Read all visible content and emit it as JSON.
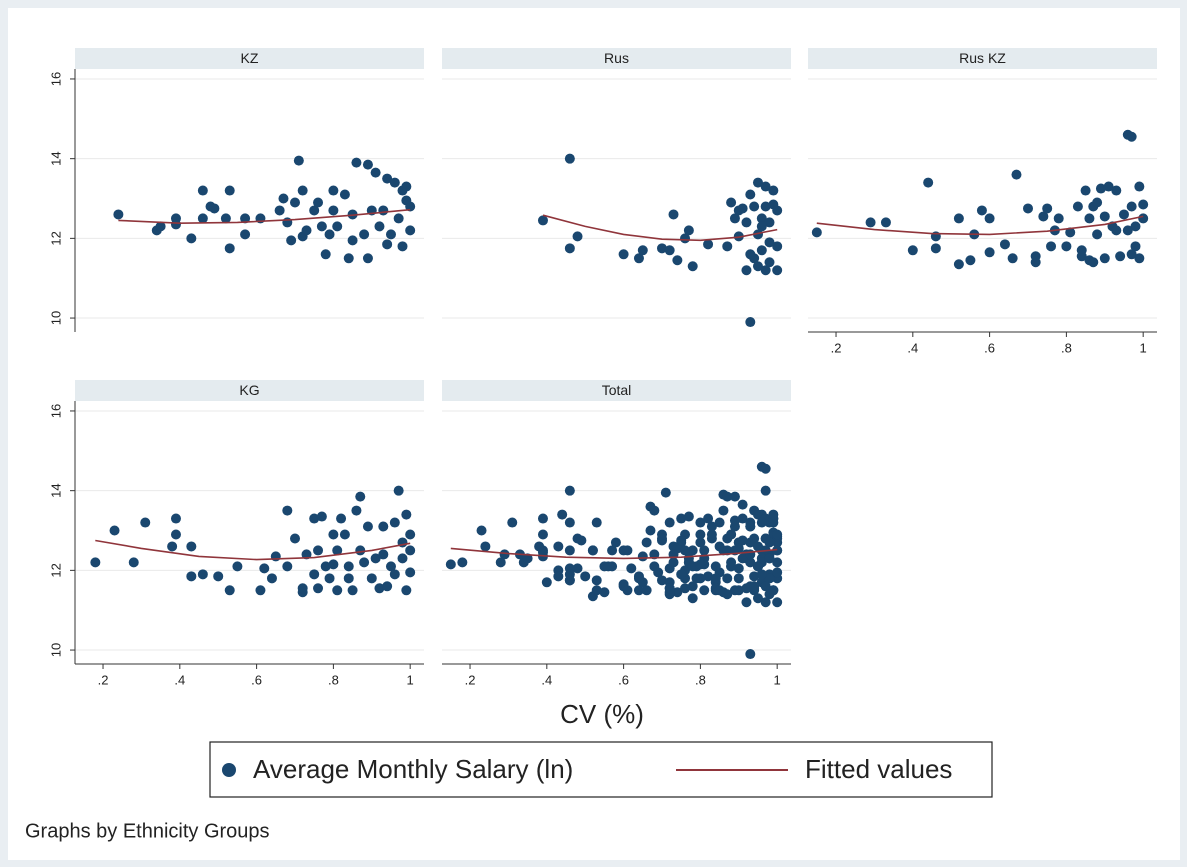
{
  "chart_data": [
    {
      "type": "scatter",
      "title": "KZ",
      "color": "#1a476f",
      "x": [
        0.24,
        0.34,
        0.35,
        0.39,
        0.39,
        0.43,
        0.46,
        0.46,
        0.48,
        0.49,
        0.52,
        0.53,
        0.53,
        0.57,
        0.57,
        0.61,
        0.66,
        0.67,
        0.68,
        0.69,
        0.7,
        0.71,
        0.72,
        0.72,
        0.73,
        0.75,
        0.76,
        0.77,
        0.78,
        0.79,
        0.8,
        0.8,
        0.81,
        0.83,
        0.84,
        0.85,
        0.85,
        0.86,
        0.88,
        0.89,
        0.89,
        0.9,
        0.91,
        0.92,
        0.93,
        0.94,
        0.94,
        0.95,
        0.96,
        0.97,
        0.98,
        0.98,
        0.99,
        1.0,
        1.0,
        0.99
      ],
      "values": [
        12.6,
        12.2,
        12.3,
        12.5,
        12.35,
        12.0,
        12.5,
        13.2,
        12.8,
        12.75,
        12.5,
        11.75,
        13.2,
        12.1,
        12.5,
        12.5,
        12.7,
        13.0,
        12.4,
        11.95,
        12.9,
        13.95,
        12.05,
        13.2,
        12.2,
        12.7,
        12.9,
        12.3,
        11.6,
        12.1,
        12.7,
        13.2,
        12.3,
        13.1,
        11.5,
        12.6,
        11.95,
        13.9,
        12.1,
        13.85,
        11.5,
        12.7,
        13.65,
        12.3,
        12.7,
        11.85,
        13.5,
        12.1,
        13.4,
        12.5,
        13.2,
        11.8,
        12.95,
        12.2,
        12.8,
        13.3
      ],
      "fit": {
        "color": "#90353b",
        "x": [
          0.24,
          0.4,
          0.55,
          0.7,
          0.85,
          1.0
        ],
        "values": [
          12.45,
          12.38,
          12.4,
          12.47,
          12.58,
          12.72
        ]
      },
      "xlim": [
        0.127,
        1.036
      ],
      "ylim": [
        9.65,
        16.25
      ],
      "yticks": [
        10,
        12,
        14,
        16
      ],
      "ytick_labels": true,
      "grid": true
    },
    {
      "type": "scatter",
      "title": "Rus",
      "color": "#1a476f",
      "x": [
        0.39,
        0.46,
        0.46,
        0.48,
        0.6,
        0.64,
        0.65,
        0.7,
        0.72,
        0.73,
        0.74,
        0.76,
        0.77,
        0.78,
        0.82,
        0.87,
        0.88,
        0.89,
        0.9,
        0.9,
        0.91,
        0.92,
        0.92,
        0.93,
        0.93,
        0.94,
        0.94,
        0.95,
        0.95,
        0.95,
        0.96,
        0.96,
        0.97,
        0.97,
        0.97,
        0.98,
        0.98,
        0.99,
        0.99,
        1.0,
        1.0,
        1.0,
        0.98,
        0.96,
        0.93
      ],
      "values": [
        12.45,
        14.0,
        11.75,
        12.05,
        11.6,
        11.5,
        11.7,
        11.75,
        11.7,
        12.6,
        11.45,
        12.0,
        12.2,
        11.3,
        11.85,
        11.8,
        12.9,
        12.5,
        12.7,
        12.05,
        12.75,
        11.2,
        12.4,
        13.1,
        9.9,
        11.5,
        12.8,
        12.1,
        11.3,
        13.4,
        11.7,
        12.5,
        11.2,
        12.8,
        13.3,
        11.4,
        12.4,
        12.85,
        13.2,
        11.2,
        11.8,
        12.7,
        11.9,
        12.3,
        11.6
      ],
      "fit": {
        "color": "#90353b",
        "x": [
          0.39,
          0.5,
          0.6,
          0.7,
          0.8,
          0.9,
          1.0
        ],
        "values": [
          12.58,
          12.3,
          12.1,
          11.98,
          11.95,
          12.03,
          12.22
        ]
      },
      "xlim": [
        0.127,
        1.036
      ],
      "ylim": [
        9.65,
        16.25
      ],
      "yticks": [
        10,
        12,
        14,
        16
      ],
      "ytick_labels": false,
      "grid": true
    },
    {
      "type": "scatter",
      "title": "Rus KZ",
      "color": "#1a476f",
      "x": [
        0.15,
        0.29,
        0.33,
        0.4,
        0.44,
        0.46,
        0.46,
        0.52,
        0.52,
        0.55,
        0.56,
        0.58,
        0.6,
        0.6,
        0.64,
        0.66,
        0.67,
        0.7,
        0.72,
        0.72,
        0.74,
        0.75,
        0.76,
        0.77,
        0.78,
        0.8,
        0.81,
        0.83,
        0.84,
        0.84,
        0.85,
        0.86,
        0.86,
        0.87,
        0.87,
        0.88,
        0.88,
        0.89,
        0.9,
        0.9,
        0.91,
        0.92,
        0.93,
        0.93,
        0.94,
        0.95,
        0.96,
        0.97,
        0.97,
        0.98,
        0.98,
        0.99,
        0.99,
        1.0,
        1.0,
        0.96,
        0.97
      ],
      "values": [
        12.15,
        12.4,
        12.4,
        11.7,
        13.4,
        12.05,
        11.75,
        12.5,
        11.35,
        11.45,
        12.1,
        12.7,
        12.5,
        11.65,
        11.85,
        11.5,
        13.6,
        12.75,
        11.4,
        11.55,
        12.55,
        12.75,
        11.8,
        12.2,
        12.5,
        11.8,
        12.15,
        12.8,
        11.7,
        11.55,
        13.2,
        12.5,
        11.45,
        12.8,
        11.4,
        12.9,
        12.1,
        13.25,
        11.5,
        12.55,
        13.3,
        12.3,
        13.2,
        12.2,
        11.55,
        12.6,
        14.6,
        14.55,
        12.8,
        11.8,
        12.3,
        13.3,
        11.5,
        12.5,
        12.85,
        12.2,
        11.6
      ],
      "fit": {
        "color": "#90353b",
        "x": [
          0.15,
          0.3,
          0.45,
          0.6,
          0.75,
          0.9,
          1.0
        ],
        "values": [
          12.38,
          12.22,
          12.12,
          12.1,
          12.18,
          12.35,
          12.55
        ]
      },
      "xlim": [
        0.127,
        1.036
      ],
      "ylim": [
        9.65,
        16.25
      ],
      "yticks": [
        10,
        12,
        14,
        16
      ],
      "ytick_labels": false,
      "grid": true,
      "xticks": [
        {
          "value": 0.2,
          "label": ".2"
        },
        {
          "value": 0.4,
          "label": ".4"
        },
        {
          "value": 0.6,
          "label": ".6"
        },
        {
          "value": 0.8,
          "label": ".8"
        },
        1
      ]
    },
    {
      "type": "scatter",
      "title": "KG",
      "color": "#1a476f",
      "x": [
        0.18,
        0.23,
        0.28,
        0.31,
        0.38,
        0.39,
        0.39,
        0.43,
        0.43,
        0.46,
        0.5,
        0.53,
        0.55,
        0.61,
        0.62,
        0.64,
        0.65,
        0.68,
        0.68,
        0.7,
        0.72,
        0.72,
        0.73,
        0.75,
        0.75,
        0.76,
        0.76,
        0.77,
        0.78,
        0.79,
        0.8,
        0.8,
        0.81,
        0.81,
        0.82,
        0.83,
        0.84,
        0.84,
        0.85,
        0.86,
        0.87,
        0.87,
        0.88,
        0.89,
        0.9,
        0.91,
        0.92,
        0.93,
        0.93,
        0.94,
        0.95,
        0.96,
        0.96,
        0.97,
        0.98,
        0.98,
        0.99,
        0.99,
        1.0,
        1.0,
        1.0
      ],
      "values": [
        12.2,
        13.0,
        12.2,
        13.2,
        12.6,
        13.3,
        12.9,
        12.6,
        11.85,
        11.9,
        11.85,
        11.5,
        12.1,
        11.5,
        12.05,
        11.8,
        12.35,
        13.5,
        12.1,
        12.8,
        11.45,
        11.55,
        12.4,
        13.3,
        11.9,
        11.55,
        12.5,
        13.35,
        12.1,
        11.8,
        12.9,
        12.15,
        12.5,
        11.5,
        13.3,
        12.9,
        11.8,
        12.1,
        11.5,
        13.5,
        13.85,
        12.5,
        12.2,
        13.1,
        11.8,
        12.3,
        11.55,
        12.4,
        13.1,
        11.6,
        12.1,
        11.9,
        13.2,
        14.0,
        12.3,
        12.7,
        11.5,
        13.4,
        12.9,
        12.5,
        11.95
      ],
      "fit": {
        "color": "#90353b",
        "x": [
          0.18,
          0.3,
          0.45,
          0.6,
          0.75,
          0.9,
          1.0
        ],
        "values": [
          12.75,
          12.55,
          12.35,
          12.27,
          12.32,
          12.5,
          12.68
        ]
      },
      "xlim": [
        0.127,
        1.036
      ],
      "ylim": [
        9.65,
        16.25
      ],
      "yticks": [
        10,
        12,
        14,
        16
      ],
      "ytick_labels": true,
      "grid": true,
      "xticks": [
        {
          "value": 0.2,
          "label": ".2"
        },
        {
          "value": 0.4,
          "label": ".4"
        },
        {
          "value": 0.6,
          "label": ".6"
        },
        {
          "value": 0.8,
          "label": ".8"
        },
        1
      ]
    },
    {
      "type": "scatter",
      "title": "Total",
      "color": "#1a476f",
      "x": [
        0.24,
        0.34,
        0.35,
        0.39,
        0.39,
        0.43,
        0.46,
        0.46,
        0.48,
        0.49,
        0.52,
        0.53,
        0.53,
        0.57,
        0.57,
        0.61,
        0.66,
        0.67,
        0.68,
        0.69,
        0.7,
        0.71,
        0.72,
        0.72,
        0.73,
        0.75,
        0.76,
        0.77,
        0.78,
        0.79,
        0.8,
        0.8,
        0.81,
        0.83,
        0.84,
        0.85,
        0.85,
        0.86,
        0.88,
        0.89,
        0.89,
        0.9,
        0.91,
        0.92,
        0.93,
        0.94,
        0.94,
        0.95,
        0.96,
        0.97,
        0.98,
        0.98,
        0.99,
        1.0,
        1.0,
        0.99,
        0.39,
        0.46,
        0.46,
        0.48,
        0.6,
        0.64,
        0.65,
        0.7,
        0.72,
        0.73,
        0.74,
        0.76,
        0.77,
        0.78,
        0.82,
        0.87,
        0.88,
        0.89,
        0.9,
        0.9,
        0.91,
        0.92,
        0.92,
        0.93,
        0.93,
        0.94,
        0.94,
        0.95,
        0.95,
        0.95,
        0.96,
        0.96,
        0.97,
        0.97,
        0.97,
        0.98,
        0.98,
        0.99,
        0.99,
        1.0,
        1.0,
        1.0,
        0.98,
        0.96,
        0.93,
        0.15,
        0.29,
        0.33,
        0.4,
        0.44,
        0.46,
        0.46,
        0.52,
        0.52,
        0.55,
        0.56,
        0.58,
        0.6,
        0.6,
        0.64,
        0.66,
        0.67,
        0.7,
        0.72,
        0.72,
        0.74,
        0.75,
        0.76,
        0.77,
        0.78,
        0.8,
        0.81,
        0.83,
        0.84,
        0.84,
        0.85,
        0.86,
        0.86,
        0.87,
        0.87,
        0.88,
        0.88,
        0.89,
        0.9,
        0.9,
        0.91,
        0.92,
        0.93,
        0.93,
        0.94,
        0.95,
        0.96,
        0.97,
        0.97,
        0.98,
        0.98,
        0.99,
        0.99,
        1.0,
        1.0,
        0.96,
        0.97,
        0.18,
        0.23,
        0.28,
        0.31,
        0.38,
        0.39,
        0.39,
        0.43,
        0.43,
        0.46,
        0.5,
        0.53,
        0.55,
        0.61,
        0.62,
        0.64,
        0.65,
        0.68,
        0.68,
        0.7,
        0.72,
        0.72,
        0.73,
        0.75,
        0.75,
        0.76,
        0.76,
        0.77,
        0.78,
        0.79,
        0.8,
        0.8,
        0.81,
        0.81,
        0.82,
        0.83,
        0.84,
        0.84,
        0.85,
        0.86,
        0.87,
        0.87,
        0.88,
        0.89,
        0.9,
        0.91,
        0.92,
        0.93,
        0.93,
        0.94,
        0.95,
        0.96,
        0.96,
        0.97,
        0.98,
        0.98,
        0.99,
        0.99,
        1.0,
        1.0,
        1.0
      ],
      "values": [
        12.6,
        12.2,
        12.3,
        12.5,
        12.35,
        12.0,
        12.5,
        13.2,
        12.8,
        12.75,
        12.5,
        11.75,
        13.2,
        12.1,
        12.5,
        12.5,
        12.7,
        13.0,
        12.4,
        11.95,
        12.9,
        13.95,
        12.05,
        13.2,
        12.2,
        12.7,
        12.9,
        12.3,
        11.6,
        12.1,
        12.7,
        13.2,
        12.3,
        13.1,
        11.5,
        12.6,
        11.95,
        13.9,
        12.1,
        13.85,
        11.5,
        12.7,
        13.65,
        12.3,
        12.7,
        11.85,
        13.5,
        12.1,
        13.4,
        12.5,
        13.2,
        11.8,
        12.95,
        12.2,
        12.8,
        13.3,
        12.45,
        14.0,
        11.75,
        12.05,
        11.6,
        11.5,
        11.7,
        11.75,
        11.7,
        12.6,
        11.45,
        12.0,
        12.2,
        11.3,
        11.85,
        11.8,
        12.9,
        12.5,
        12.7,
        12.05,
        12.75,
        11.2,
        12.4,
        13.1,
        9.9,
        11.5,
        12.8,
        12.1,
        11.3,
        13.4,
        11.7,
        12.5,
        11.2,
        12.8,
        13.3,
        11.4,
        12.4,
        12.85,
        13.2,
        11.2,
        11.8,
        12.7,
        11.9,
        12.3,
        11.6,
        12.15,
        12.4,
        12.4,
        11.7,
        13.4,
        12.05,
        11.75,
        12.5,
        11.35,
        11.45,
        12.1,
        12.7,
        12.5,
        11.65,
        11.85,
        11.5,
        13.6,
        12.75,
        11.4,
        11.55,
        12.55,
        12.75,
        11.8,
        12.2,
        12.5,
        11.8,
        12.15,
        12.8,
        11.7,
        11.55,
        13.2,
        12.5,
        11.45,
        12.8,
        11.4,
        12.9,
        12.1,
        13.25,
        11.5,
        12.55,
        13.3,
        12.3,
        13.2,
        12.2,
        11.55,
        12.6,
        14.6,
        14.55,
        12.8,
        11.8,
        12.3,
        13.3,
        11.5,
        12.5,
        12.85,
        12.2,
        11.6,
        12.2,
        13.0,
        12.2,
        13.2,
        12.6,
        13.3,
        12.9,
        12.6,
        11.85,
        11.9,
        11.85,
        11.5,
        12.1,
        11.5,
        12.05,
        11.8,
        12.35,
        13.5,
        12.1,
        12.8,
        11.45,
        11.55,
        12.4,
        13.3,
        11.9,
        11.55,
        12.5,
        13.35,
        12.1,
        11.8,
        12.9,
        12.15,
        12.5,
        11.5,
        13.3,
        12.9,
        11.8,
        12.1,
        11.5,
        13.5,
        13.85,
        12.5,
        12.2,
        13.1,
        11.8,
        12.3,
        11.55,
        12.4,
        13.1,
        11.6,
        12.1,
        11.9,
        13.2,
        14.0,
        12.3,
        12.7,
        11.5,
        13.4,
        12.9,
        12.5,
        11.95
      ],
      "fit": {
        "color": "#90353b",
        "x": [
          0.15,
          0.3,
          0.45,
          0.6,
          0.75,
          0.9,
          1.0
        ],
        "values": [
          12.55,
          12.42,
          12.33,
          12.3,
          12.33,
          12.43,
          12.52
        ]
      },
      "xlim": [
        0.127,
        1.036
      ],
      "ylim": [
        9.65,
        16.25
      ],
      "yticks": [
        10,
        12,
        14,
        16
      ],
      "ytick_labels": false,
      "grid": true,
      "xticks": [
        {
          "value": 0.2,
          "label": ".2"
        },
        {
          "value": 0.4,
          "label": ".4"
        },
        {
          "value": 0.6,
          "label": ".6"
        },
        {
          "value": 0.8,
          "label": ".8"
        },
        1
      ]
    }
  ],
  "x_label": "CV (%)",
  "legend": {
    "markers": "Average Monthly Salary (ln)",
    "line": "Fitted values"
  },
  "note": "Graphs by Ethnicity Groups"
}
